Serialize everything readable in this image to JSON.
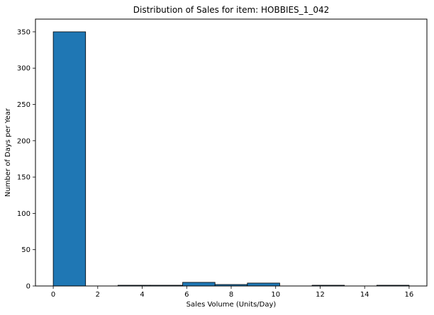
{
  "chart_data": {
    "type": "bar",
    "title": "Distribution of Sales for item: HOBBIES_1_042",
    "xlabel": "Sales Volume (Units/Day)",
    "ylabel": "Number of Days per Year",
    "xlim": [
      -0.8,
      16.8
    ],
    "ylim": [
      0,
      367.5
    ],
    "xticks": [
      0,
      2,
      4,
      6,
      8,
      10,
      12,
      14,
      16
    ],
    "yticks": [
      0,
      50,
      100,
      150,
      200,
      250,
      300,
      350
    ],
    "bin_edges": [
      0,
      1.4545,
      2.9091,
      4.3636,
      5.8182,
      7.2727,
      8.7273,
      10.1818,
      11.6364,
      13.0909,
      14.5455,
      16.0
    ],
    "values": [
      350,
      0,
      1,
      1,
      5,
      2,
      4,
      0,
      1,
      0,
      1
    ],
    "bar_color": "#1f77b4",
    "edge_color": "#000000",
    "grid": false,
    "legend": false
  }
}
